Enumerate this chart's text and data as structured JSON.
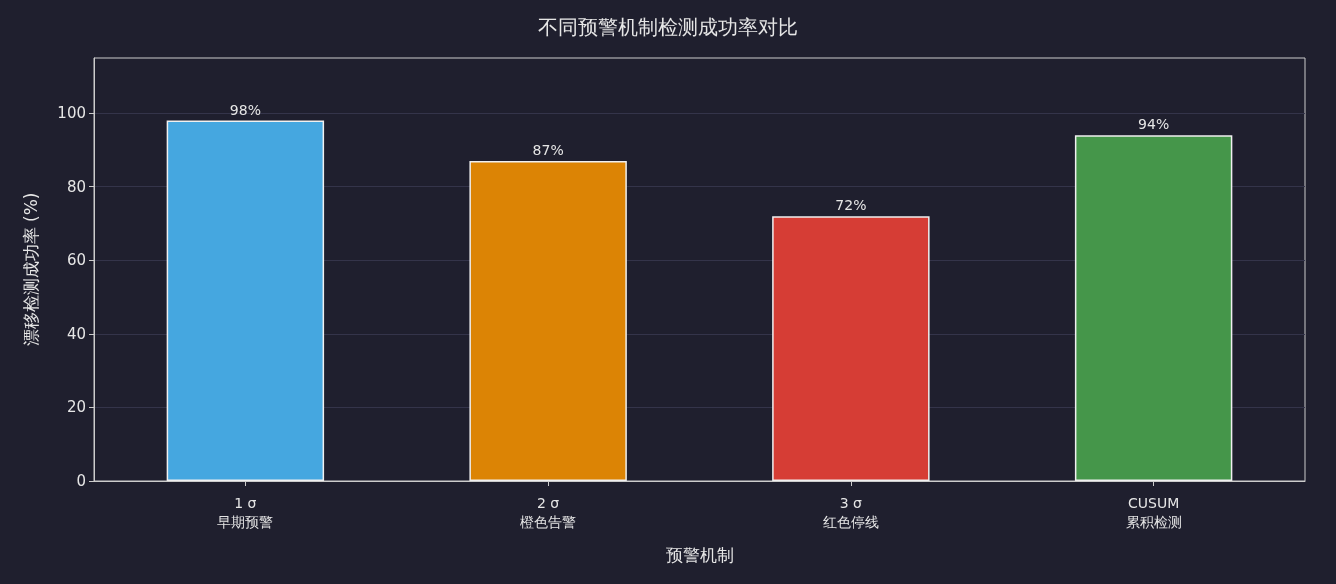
{
  "chart_data": {
    "type": "bar",
    "title": "不同预警机制检测成功率对比",
    "xlabel": "预警机制",
    "ylabel": "漂移检测成功率 (%)",
    "categories": [
      "1 σ\n早期预警",
      "2 σ\n橙色告警",
      "3 σ\n红色停线",
      "CUSUM\n累积检测"
    ],
    "values": [
      98,
      87,
      72,
      94
    ],
    "colors": [
      "#45a7e0",
      "#dc8405",
      "#d63d35",
      "#45964a"
    ],
    "value_labels": [
      "98%",
      "87%",
      "72%",
      "94%"
    ],
    "ylim": [
      0,
      115
    ],
    "yticks": [
      0,
      20,
      40,
      60,
      80,
      100
    ],
    "grid": "y"
  }
}
